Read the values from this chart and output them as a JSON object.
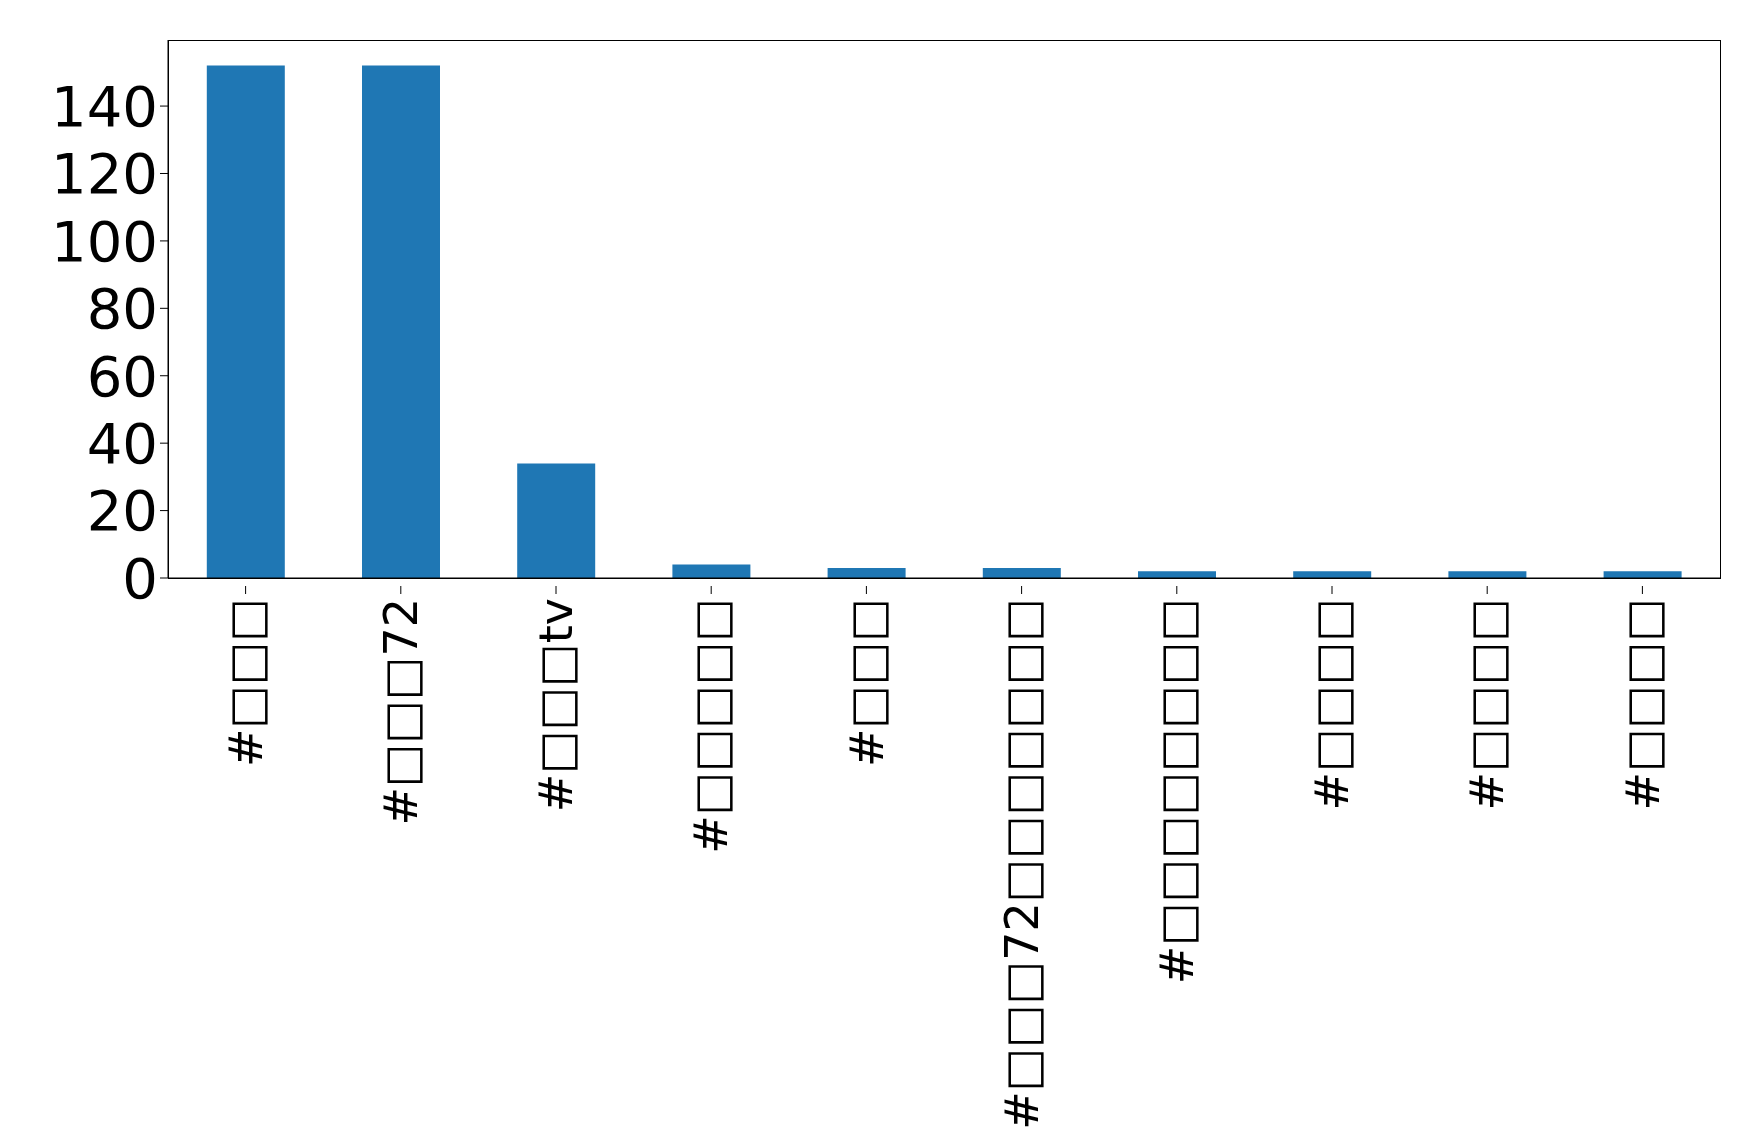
{
  "chart_data": {
    "type": "bar",
    "categories": [
      "#□□□",
      "#□□□72",
      "#□□□tv",
      "#□□□□□",
      "#□□□",
      "#□□□72□□□□□□□",
      "#□□□□□□□□",
      "#□□□□",
      "#□□□□",
      "#□□□□"
    ],
    "values": [
      152,
      152,
      34,
      4,
      3,
      3,
      2,
      2,
      2,
      2
    ],
    "color": "#1f77b4",
    "ylim": [
      0,
      159.6
    ],
    "yticks": [
      0,
      20,
      40,
      60,
      80,
      100,
      120,
      140
    ],
    "grid": false,
    "legend": false
  }
}
